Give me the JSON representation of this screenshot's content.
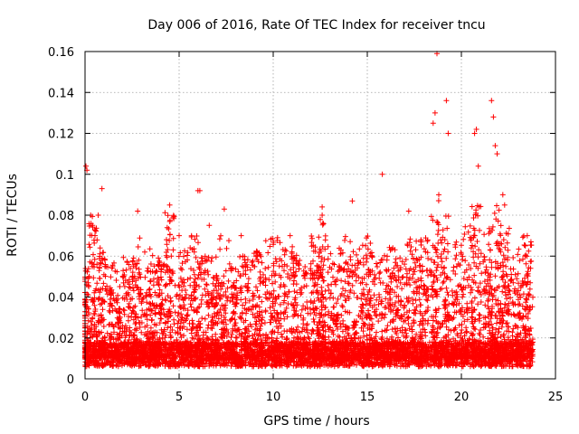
{
  "chart_data": {
    "type": "scatter",
    "title": "Day 006 of 2016, Rate Of TEC Index for receiver tncu",
    "xlabel": "GPS time / hours",
    "ylabel": "ROTI / TECUs",
    "xlim": [
      0,
      25
    ],
    "ylim": [
      0,
      0.16
    ],
    "xticks": [
      0,
      5,
      10,
      15,
      20,
      25
    ],
    "yticks": [
      0,
      0.02,
      0.04,
      0.06,
      0.08,
      0.1,
      0.12,
      0.14,
      0.16
    ],
    "xtick_labels": [
      "0",
      "5",
      "10",
      "15",
      "20",
      "25"
    ],
    "ytick_labels": [
      "0",
      "0.02",
      "0.04",
      "0.06",
      "0.08",
      "0.1",
      "0.12",
      "0.14",
      "0.16"
    ],
    "grid": true,
    "marker": "+",
    "series": [
      {
        "name": "ROTI",
        "color": "#ff0000",
        "x_range": [
          0,
          23.8
        ],
        "outliers": [
          [
            0.05,
            0.104
          ],
          [
            0.1,
            0.102
          ],
          [
            0.3,
            0.08
          ],
          [
            0.4,
            0.075
          ],
          [
            0.7,
            0.08
          ],
          [
            0.9,
            0.093
          ],
          [
            2.8,
            0.082
          ],
          [
            4.5,
            0.085
          ],
          [
            5.0,
            0.07
          ],
          [
            6.0,
            0.092
          ],
          [
            6.1,
            0.092
          ],
          [
            6.6,
            0.075
          ],
          [
            7.4,
            0.083
          ],
          [
            8.3,
            0.07
          ],
          [
            10.9,
            0.07
          ],
          [
            12.6,
            0.084
          ],
          [
            12.6,
            0.08
          ],
          [
            14.2,
            0.087
          ],
          [
            15.8,
            0.1
          ],
          [
            17.2,
            0.082
          ],
          [
            18.5,
            0.125
          ],
          [
            18.6,
            0.13
          ],
          [
            18.7,
            0.159
          ],
          [
            18.8,
            0.09
          ],
          [
            19.2,
            0.136
          ],
          [
            19.3,
            0.12
          ],
          [
            20.7,
            0.12
          ],
          [
            20.8,
            0.122
          ],
          [
            20.9,
            0.104
          ],
          [
            21.6,
            0.136
          ],
          [
            21.7,
            0.128
          ],
          [
            21.8,
            0.114
          ],
          [
            21.9,
            0.11
          ],
          [
            22.2,
            0.09
          ],
          [
            22.3,
            0.085
          ],
          [
            23.5,
            0.07
          ]
        ]
      }
    ]
  }
}
